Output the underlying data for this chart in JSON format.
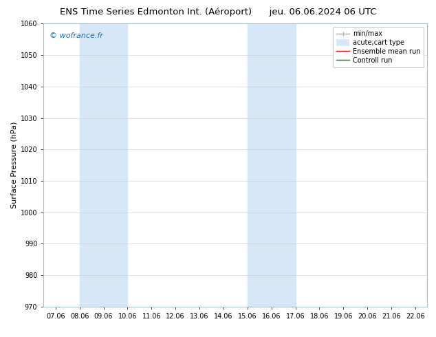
{
  "title_left": "ENS Time Series Edmonton Int. (Aéroport)",
  "title_right": "jeu. 06.06.2024 06 UTC",
  "ylabel": "Surface Pressure (hPa)",
  "ylim": [
    970,
    1060
  ],
  "yticks": [
    970,
    980,
    990,
    1000,
    1010,
    1020,
    1030,
    1040,
    1050,
    1060
  ],
  "xtick_labels": [
    "07.06",
    "08.06",
    "09.06",
    "10.06",
    "11.06",
    "12.06",
    "13.06",
    "14.06",
    "15.06",
    "16.06",
    "17.06",
    "18.06",
    "19.06",
    "20.06",
    "21.06",
    "22.06"
  ],
  "shaded_region_1": {
    "xstart": 1,
    "xend": 3
  },
  "shaded_region_2": {
    "xstart": 8,
    "xend": 10
  },
  "shaded_color": "#d6e8f7",
  "watermark": "© wofrance.fr",
  "watermark_color": "#1a6bb5",
  "background_color": "#ffffff",
  "legend_entries": [
    {
      "label": "min/max",
      "color": "#aaaaaa",
      "linewidth": 1.0
    },
    {
      "label": "acute;cart type",
      "color": "#d6e8f7",
      "linewidth": 7
    },
    {
      "label": "Ensemble mean run",
      "color": "#ff0000",
      "linewidth": 1.0
    },
    {
      "label": "Controll run",
      "color": "#008000",
      "linewidth": 1.0
    }
  ],
  "title_fontsize": 9.5,
  "ylabel_fontsize": 8,
  "tick_fontsize": 7,
  "watermark_fontsize": 8,
  "legend_fontsize": 7,
  "spine_color": "#aabbcc"
}
